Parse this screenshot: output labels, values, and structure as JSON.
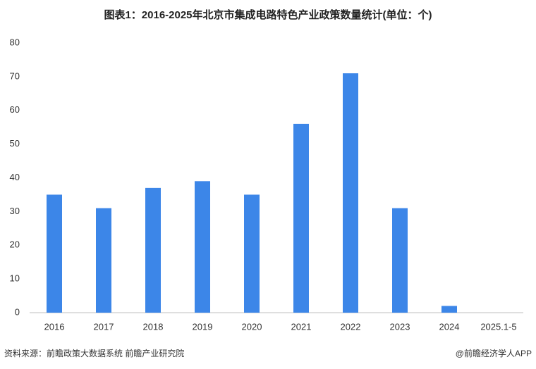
{
  "chart_data": {
    "type": "bar",
    "title": "图表1：2016-2025年北京市集成电路特色产业政策数量统计(单位：个)",
    "categories": [
      "2016",
      "2017",
      "2018",
      "2019",
      "2020",
      "2021",
      "2022",
      "2023",
      "2024",
      "2025.1-5"
    ],
    "values": [
      35,
      31,
      37,
      39,
      35,
      56,
      71,
      31,
      2,
      0
    ],
    "color": "#3c86e8",
    "ylim": [
      0,
      80
    ],
    "yticks": [
      0,
      10,
      20,
      30,
      40,
      50,
      60,
      70,
      80
    ],
    "grid": false,
    "source": "资料来源：前瞻政策大数据系统 前瞻产业研究院",
    "credit": "@前瞻经济学人APP"
  }
}
